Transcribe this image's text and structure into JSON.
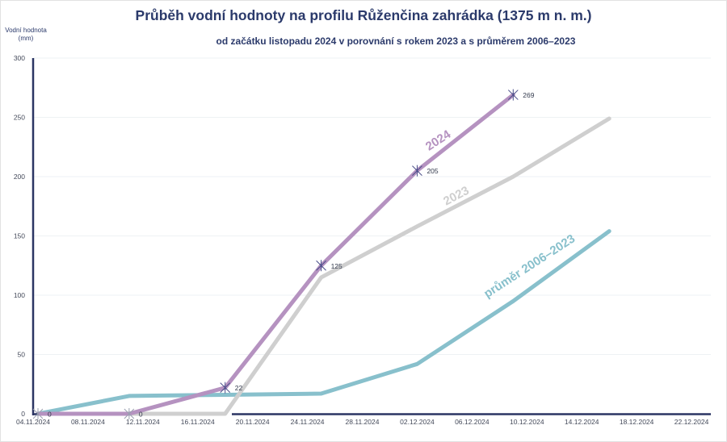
{
  "chart_data": {
    "type": "line",
    "title": "Průběh vodní hodnoty na profilu Růženčina zahrádka (1375 m n. m.)",
    "subtitle": "od začátku listopadu 2024 v porovnání s rokem 2023 a s průměrem 2006–2023",
    "xlabel": "",
    "ylabel": "Vodní hodnota (mm)",
    "ylabel_line1": "Vodní hodnota",
    "ylabel_line2": "(mm)",
    "ylim": [
      0,
      300
    ],
    "yticks": [
      0,
      50,
      100,
      150,
      200,
      250,
      300
    ],
    "xticks": [
      "04.11.2024",
      "08.11.2024",
      "12.11.2024",
      "16.11.2024",
      "20.11.2024",
      "24.11.2024",
      "28.11.2024",
      "02.12.2024",
      "06.12.2024",
      "10.12.2024",
      "14.12.2024",
      "18.12.2024",
      "22.12.2024"
    ],
    "grid": "horizontal",
    "legend": "inline labels on lines",
    "series": [
      {
        "name": "2024",
        "color": "#b592c0",
        "markers": true,
        "x": [
          "04.11.2024",
          "11.11.2024",
          "18.11.2024",
          "25.11.2024",
          "02.12.2024",
          "09.12.2024"
        ],
        "values": [
          0,
          0,
          22,
          125,
          205,
          269
        ],
        "data_labels": [
          "0",
          "0",
          "22",
          "125",
          "205",
          "269"
        ]
      },
      {
        "name": "2023",
        "color": "#cfcfcf",
        "markers": false,
        "x": [
          "04.11.2024",
          "11.11.2024",
          "18.11.2024",
          "25.11.2024",
          "02.12.2024",
          "09.12.2024",
          "16.12.2024"
        ],
        "values": [
          0,
          0,
          0,
          115,
          158,
          200,
          249
        ]
      },
      {
        "name": "průměr 2006–2023",
        "color": "#88c0cc",
        "markers": false,
        "x": [
          "04.11.2024",
          "11.11.2024",
          "18.11.2024",
          "25.11.2024",
          "02.12.2024",
          "09.12.2024",
          "16.12.2024"
        ],
        "values": [
          0,
          15,
          16,
          17,
          42,
          95,
          154
        ]
      }
    ]
  }
}
